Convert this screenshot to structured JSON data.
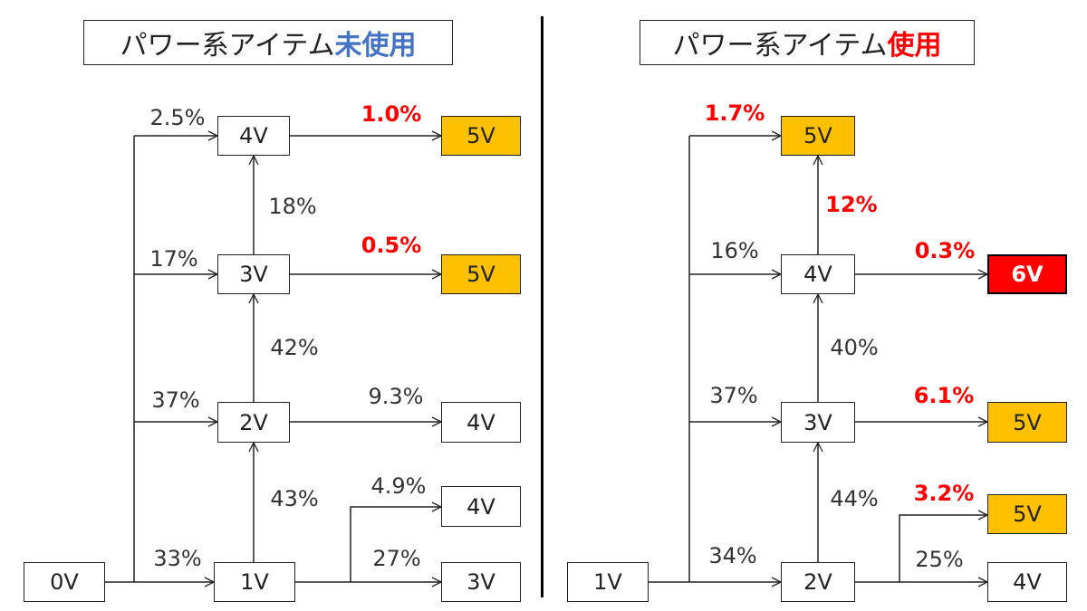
{
  "panels": [
    {
      "title": {
        "prefix": "パワー系アイテム",
        "emphasis": "未使用",
        "emphasis_color": "#4472c4"
      },
      "nodes": [
        {
          "id": "L0",
          "label": "0V",
          "fill": "white"
        },
        {
          "id": "L1",
          "label": "1V",
          "fill": "white"
        },
        {
          "id": "L2",
          "label": "2V",
          "fill": "white"
        },
        {
          "id": "L3",
          "label": "3V",
          "fill": "white"
        },
        {
          "id": "L4",
          "label": "4V",
          "fill": "white"
        },
        {
          "id": "L5a",
          "label": "5V",
          "fill": "gold"
        },
        {
          "id": "L5b",
          "label": "5V",
          "fill": "gold"
        },
        {
          "id": "L4b",
          "label": "4V",
          "fill": "white"
        },
        {
          "id": "L4c",
          "label": "4V",
          "fill": "white"
        },
        {
          "id": "L3b",
          "label": "3V",
          "fill": "white"
        }
      ],
      "edges": [
        {
          "from": "L0",
          "to": "L1",
          "label": "33%",
          "highlight": false
        },
        {
          "from": "L0",
          "to": "L2",
          "label": "37%",
          "highlight": false
        },
        {
          "from": "L0",
          "to": "L3",
          "label": "17%",
          "highlight": false
        },
        {
          "from": "L0",
          "to": "L4",
          "label": "2.5%",
          "highlight": false
        },
        {
          "from": "L1",
          "to": "L2",
          "label": "43%",
          "highlight": false
        },
        {
          "from": "L2",
          "to": "L3",
          "label": "42%",
          "highlight": false
        },
        {
          "from": "L3",
          "to": "L4",
          "label": "18%",
          "highlight": false
        },
        {
          "from": "L4",
          "to": "L5a",
          "label": "1.0%",
          "highlight": true
        },
        {
          "from": "L3",
          "to": "L5b",
          "label": "0.5%",
          "highlight": true
        },
        {
          "from": "L2",
          "to": "L4b",
          "label": "9.3%",
          "highlight": false
        },
        {
          "from": "L1",
          "to": "L4c",
          "label": "4.9%",
          "highlight": false
        },
        {
          "from": "L1",
          "to": "L3b",
          "label": "27%",
          "highlight": false
        }
      ]
    },
    {
      "title": {
        "prefix": "パワー系アイテム",
        "emphasis": "使用",
        "emphasis_color": "#ff0000"
      },
      "nodes": [
        {
          "id": "R1",
          "label": "1V",
          "fill": "white"
        },
        {
          "id": "R2",
          "label": "2V",
          "fill": "white"
        },
        {
          "id": "R3",
          "label": "3V",
          "fill": "white"
        },
        {
          "id": "R4",
          "label": "4V",
          "fill": "white"
        },
        {
          "id": "R5a",
          "label": "5V",
          "fill": "gold"
        },
        {
          "id": "R6",
          "label": "6V",
          "fill": "red"
        },
        {
          "id": "R5b",
          "label": "5V",
          "fill": "gold"
        },
        {
          "id": "R5c",
          "label": "5V",
          "fill": "gold"
        },
        {
          "id": "R4b",
          "label": "4V",
          "fill": "white"
        }
      ],
      "edges": [
        {
          "from": "R1",
          "to": "R2",
          "label": "34%",
          "highlight": false
        },
        {
          "from": "R1",
          "to": "R3",
          "label": "37%",
          "highlight": false
        },
        {
          "from": "R1",
          "to": "R4",
          "label": "16%",
          "highlight": false
        },
        {
          "from": "R1",
          "to": "R5a",
          "label": "1.7%",
          "highlight": true
        },
        {
          "from": "R2",
          "to": "R3",
          "label": "44%",
          "highlight": false
        },
        {
          "from": "R3",
          "to": "R4",
          "label": "40%",
          "highlight": false
        },
        {
          "from": "R4",
          "to": "R5a",
          "label": "12%",
          "highlight": true
        },
        {
          "from": "R4",
          "to": "R6",
          "label": "0.3%",
          "highlight": true
        },
        {
          "from": "R3",
          "to": "R5b",
          "label": "6.1%",
          "highlight": true
        },
        {
          "from": "R2",
          "to": "R5c",
          "label": "3.2%",
          "highlight": true
        },
        {
          "from": "R2",
          "to": "R4b",
          "label": "25%",
          "highlight": false
        }
      ]
    }
  ],
  "colors": {
    "gold": "#ffc000",
    "red": "#ff0000",
    "blue": "#4472c4",
    "line": "#222222"
  }
}
